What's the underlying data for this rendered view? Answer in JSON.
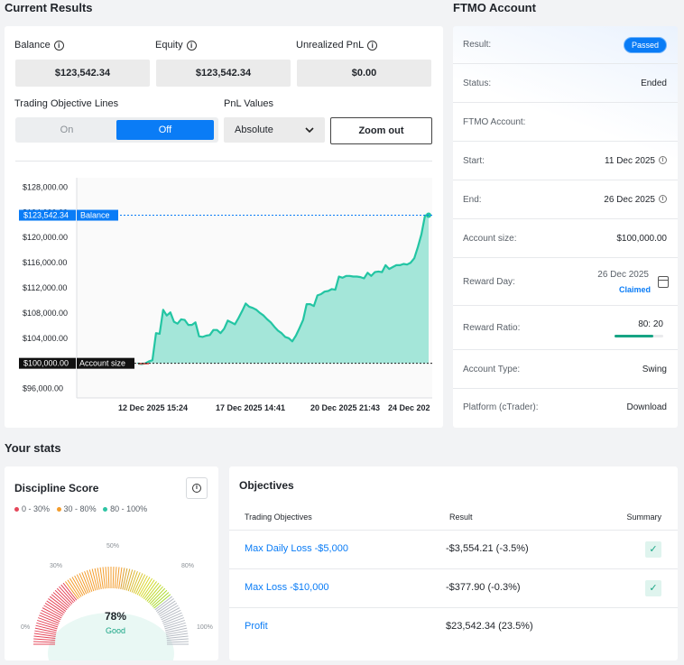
{
  "current_results": {
    "heading": "Current Results",
    "balance_label": "Balance",
    "balance_value": "$123,542.34",
    "equity_label": "Equity",
    "equity_value": "$123,542.34",
    "unrealized_label": "Unrealized PnL",
    "unrealized_value": "$0.00",
    "objective_lines_label": "Trading Objective Lines",
    "toggle_on": "On",
    "toggle_off": "Off",
    "pnl_label": "PnL Values",
    "pnl_selected": "Absolute",
    "zoom_out": "Zoom out"
  },
  "chart_data": {
    "type": "area",
    "y_tick_labels": [
      "$128,000.00",
      "$124,000.00",
      "$120,000.00",
      "$116,000.00",
      "$112,000.00",
      "$108,000.00",
      "$104,000.00",
      "$100,000.00",
      "$96,000.00"
    ],
    "y_ticks": [
      128000,
      124000,
      120000,
      116000,
      112000,
      108000,
      104000,
      100000,
      96000
    ],
    "ylim": [
      94500,
      129500
    ],
    "x_tick_labels": [
      "12 Dec 2025 15:24",
      "17 Dec 2025 14:41",
      "20 Dec 2025 21:43",
      "24 Dec 202"
    ],
    "balance_marker": {
      "value": "$123,542.34",
      "label": "Balance",
      "y": 123542.34
    },
    "account_marker": {
      "value": "$100,000.00",
      "label": "Account size",
      "y": 100000
    },
    "series": [
      {
        "values": [
          99950,
          99900,
          100000,
          100300,
          100500,
          104800,
          104700,
          108500,
          107600,
          108100,
          106600,
          106300,
          107000,
          106900,
          106100,
          106100,
          106500,
          104300,
          104200,
          104400,
          104500,
          105300,
          105300,
          104800,
          105500,
          106800,
          106500,
          106200,
          107200,
          108300,
          109500,
          109000,
          108800,
          108500,
          108000,
          107600,
          107000,
          106500,
          105800,
          105200,
          104800,
          104200,
          104000,
          103500,
          104400,
          105600,
          106900,
          109400,
          109400,
          109100,
          110800,
          111000,
          111400,
          111500,
          111800,
          111700,
          113800,
          113600,
          113900,
          113900,
          113800,
          113800,
          113700,
          113500,
          114400,
          113900,
          114500,
          114600,
          114500,
          115600,
          115000,
          115300,
          115600,
          115600,
          115800,
          115700,
          116000,
          116700,
          118500,
          120500,
          123500,
          123542
        ]
      }
    ],
    "area_color": "#a4e6d9",
    "line_color": "#23c5a3"
  },
  "ftmo": {
    "heading": "FTMO Account",
    "rows": [
      {
        "k": "Result:",
        "v": "Passed"
      },
      {
        "k": "Status:",
        "v": "Ended"
      },
      {
        "k": "FTMO Account:",
        "v": ""
      },
      {
        "k": "Start:",
        "v": "11 Dec 2025"
      },
      {
        "k": "End:",
        "v": "26 Dec 2025"
      },
      {
        "k": "Account size:",
        "v": "$100,000.00"
      },
      {
        "k": "Reward Day:",
        "v": "26 Dec 2025",
        "sub": "Claimed"
      },
      {
        "k": "Reward Ratio:",
        "v": "80: 20",
        "ratio": 0.8
      },
      {
        "k": "Account Type:",
        "v": "Swing"
      },
      {
        "k": "Platform (cTrader):",
        "v": "Download"
      }
    ]
  },
  "stats": {
    "heading": "Your stats",
    "discipline_title": "Discipline Score",
    "legend": [
      "0 - 30%",
      "30 - 80%",
      "80 - 100%"
    ],
    "legend_colors": [
      "#e5475a",
      "#f39c2c",
      "#2ec4a4"
    ],
    "gauge_labels": [
      "0%",
      "30%",
      "50%",
      "80%",
      "100%"
    ],
    "score": "78%",
    "score_fraction": 0.78,
    "score_text": "Good"
  },
  "objectives": {
    "heading": "Objectives",
    "col_objective": "Trading Objectives",
    "col_result": "Result",
    "col_summary": "Summary",
    "rows": [
      {
        "name": "Max Daily Loss -$5,000",
        "result": "-$3,554.21 (-3.5%)",
        "check": true
      },
      {
        "name": "Max Loss -$10,000",
        "result": "-$377.90 (-0.3%)",
        "check": true
      },
      {
        "name": "Profit",
        "result": "$23,542.34 (23.5%)",
        "check": false
      }
    ]
  },
  "colors": {
    "accent": "#0a7cf6",
    "teal": "#23c5a3"
  }
}
